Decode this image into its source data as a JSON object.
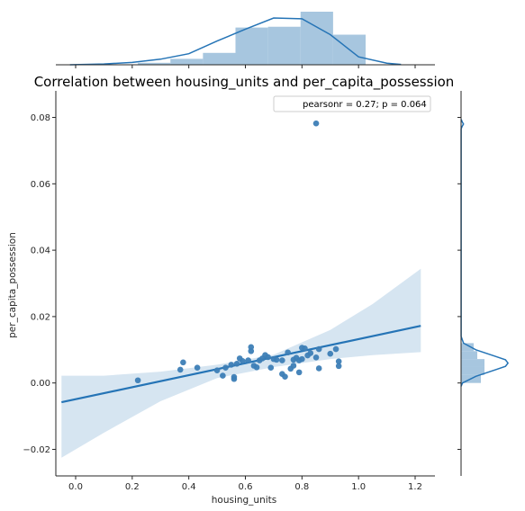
{
  "chart_data": {
    "type": "scatter",
    "title": "Correlation between housing_units and per_capita_possession",
    "xlabel": "housing_units",
    "ylabel": "per_capita_possession",
    "xlim": [
      -0.07,
      1.27
    ],
    "ylim": [
      -0.028,
      0.088
    ],
    "xticks": [
      "0.0",
      "0.2",
      "0.4",
      "0.6",
      "0.8",
      "1.0",
      "1.2"
    ],
    "yticks": [
      "−0.02",
      "0.00",
      "0.02",
      "0.04",
      "0.06",
      "0.08"
    ],
    "legend": {
      "text": "pearsonr = 0.27; p = 0.064",
      "placement": "top-right"
    },
    "points": [
      {
        "x": 0.22,
        "y": 0.0008
      },
      {
        "x": 0.37,
        "y": 0.004
      },
      {
        "x": 0.38,
        "y": 0.0062
      },
      {
        "x": 0.43,
        "y": 0.0046
      },
      {
        "x": 0.5,
        "y": 0.0038
      },
      {
        "x": 0.52,
        "y": 0.0022
      },
      {
        "x": 0.53,
        "y": 0.0046
      },
      {
        "x": 0.55,
        "y": 0.0055
      },
      {
        "x": 0.56,
        "y": 0.0012
      },
      {
        "x": 0.56,
        "y": 0.0018
      },
      {
        "x": 0.57,
        "y": 0.0058
      },
      {
        "x": 0.58,
        "y": 0.0074
      },
      {
        "x": 0.59,
        "y": 0.0066
      },
      {
        "x": 0.61,
        "y": 0.0068
      },
      {
        "x": 0.62,
        "y": 0.0096
      },
      {
        "x": 0.62,
        "y": 0.0108
      },
      {
        "x": 0.63,
        "y": 0.0052
      },
      {
        "x": 0.64,
        "y": 0.0047
      },
      {
        "x": 0.65,
        "y": 0.0068
      },
      {
        "x": 0.66,
        "y": 0.0074
      },
      {
        "x": 0.67,
        "y": 0.0084
      },
      {
        "x": 0.68,
        "y": 0.0078
      },
      {
        "x": 0.69,
        "y": 0.0046
      },
      {
        "x": 0.7,
        "y": 0.0072
      },
      {
        "x": 0.71,
        "y": 0.007
      },
      {
        "x": 0.73,
        "y": 0.0068
      },
      {
        "x": 0.73,
        "y": 0.0027
      },
      {
        "x": 0.74,
        "y": 0.0019
      },
      {
        "x": 0.75,
        "y": 0.0092
      },
      {
        "x": 0.76,
        "y": 0.0043
      },
      {
        "x": 0.77,
        "y": 0.007
      },
      {
        "x": 0.77,
        "y": 0.0052
      },
      {
        "x": 0.78,
        "y": 0.0076
      },
      {
        "x": 0.79,
        "y": 0.0068
      },
      {
        "x": 0.79,
        "y": 0.0032
      },
      {
        "x": 0.8,
        "y": 0.0106
      },
      {
        "x": 0.8,
        "y": 0.0072
      },
      {
        "x": 0.81,
        "y": 0.0104
      },
      {
        "x": 0.82,
        "y": 0.0083
      },
      {
        "x": 0.83,
        "y": 0.009
      },
      {
        "x": 0.85,
        "y": 0.0077
      },
      {
        "x": 0.86,
        "y": 0.0044
      },
      {
        "x": 0.86,
        "y": 0.0102
      },
      {
        "x": 0.9,
        "y": 0.0088
      },
      {
        "x": 0.92,
        "y": 0.0102
      },
      {
        "x": 0.93,
        "y": 0.0051
      },
      {
        "x": 0.93,
        "y": 0.0065
      },
      {
        "x": 0.85,
        "y": 0.0782
      }
    ],
    "regression": {
      "x": [
        -0.05,
        1.22
      ],
      "y": [
        -0.0058,
        0.0172
      ]
    },
    "confidence_band": {
      "x": [
        -0.05,
        0.1,
        0.3,
        0.5,
        0.7,
        0.9,
        1.05,
        1.22
      ],
      "lower": [
        -0.0225,
        -0.015,
        -0.0055,
        0.0015,
        0.0048,
        0.0072,
        0.0084,
        0.0093
      ],
      "upper": [
        0.0022,
        0.0022,
        0.0034,
        0.0055,
        0.0085,
        0.016,
        0.0238,
        0.0344
      ]
    },
    "marginal_x": {
      "hist_edges": [
        0.22,
        0.335,
        0.45,
        0.565,
        0.68,
        0.795,
        0.91,
        1.025,
        1.14
      ],
      "hist_heights": [
        0.25,
        0.75,
        1.5,
        4.7,
        4.8,
        6.7,
        3.8,
        0.0
      ],
      "kde_x": [
        -0.02,
        0.1,
        0.2,
        0.3,
        0.4,
        0.5,
        0.6,
        0.7,
        0.8,
        0.9,
        1.0,
        1.1,
        1.15
      ],
      "kde_y": [
        0.0,
        0.1,
        0.3,
        0.7,
        1.4,
        3.0,
        4.5,
        5.9,
        5.8,
        3.8,
        1.0,
        0.2,
        0.05
      ]
    },
    "marginal_y": {
      "hist_edges": [
        0.0,
        0.0024,
        0.0048,
        0.0072,
        0.0096,
        0.012
      ],
      "hist_heights": [
        11,
        13,
        13,
        9,
        7
      ],
      "kde_y": [
        -0.001,
        0.0,
        0.002,
        0.004,
        0.005,
        0.006,
        0.007,
        0.008,
        0.01,
        0.012,
        0.014,
        0.0766,
        0.0774,
        0.078,
        0.0786,
        0.0794
      ],
      "kde_x": [
        0.01,
        0.6,
        6.0,
        14.0,
        18.0,
        19.0,
        18.0,
        14.0,
        6.0,
        1.0,
        0.05,
        0.05,
        0.5,
        1.0,
        0.5,
        0.05
      ]
    },
    "colors": {
      "point": "#3d7eb6",
      "line": "#2574b6",
      "band": "#d6e5f1",
      "hist_fill": "#9dc0dc",
      "kde": "#2574b6"
    }
  }
}
